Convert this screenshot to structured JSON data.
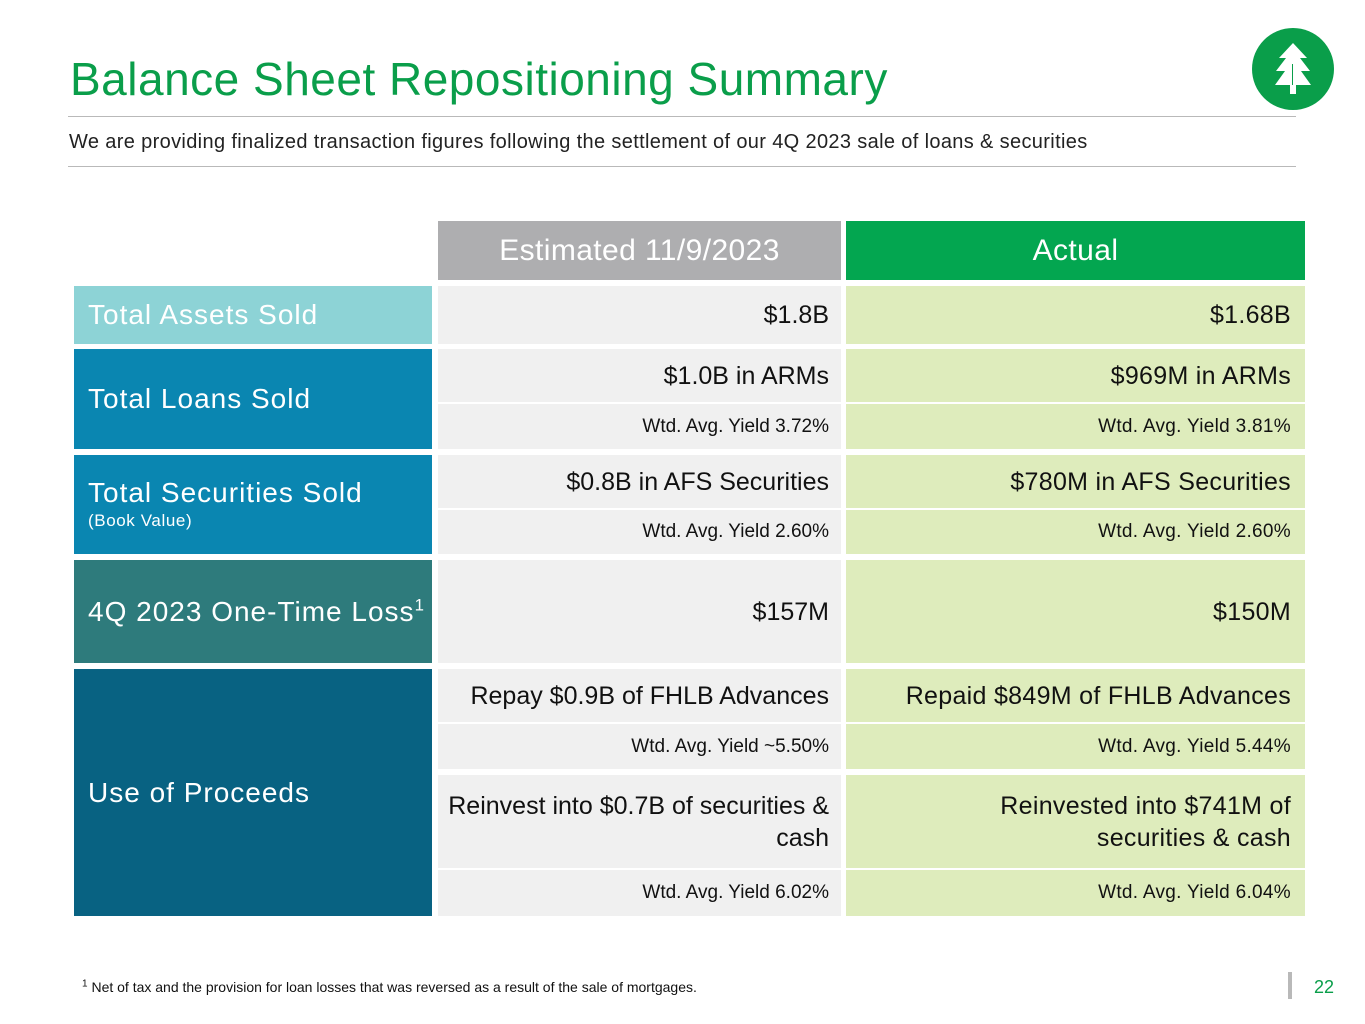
{
  "title": "Balance Sheet Repositioning Summary",
  "subtitle": "We are providing finalized transaction figures following the settlement of our 4Q 2023 sale of loans & securities",
  "columns": {
    "estimated": "Estimated 11/9/2023",
    "actual": "Actual"
  },
  "rows": {
    "assets": {
      "label": "Total Assets Sold",
      "estimated": "$1.8B",
      "actual": "$1.68B"
    },
    "loans": {
      "label": "Total Loans Sold",
      "estimated": "$1.0B in ARMs",
      "actual": "$969M in ARMs",
      "estimated_yield": "Wtd. Avg. Yield 3.72%",
      "actual_yield": "Wtd. Avg. Yield 3.81%"
    },
    "securities": {
      "label": "Total Securities Sold",
      "sublabel": "(Book Value)",
      "estimated": "$0.8B in AFS Securities",
      "actual": "$780M in AFS Securities",
      "estimated_yield": "Wtd. Avg. Yield 2.60%",
      "actual_yield": "Wtd. Avg. Yield 2.60%"
    },
    "loss": {
      "label": "4Q 2023 One-Time Loss",
      "footnote_mark": "1",
      "estimated": "$157M",
      "actual": "$150M"
    },
    "proceeds": {
      "label": "Use of Proceeds",
      "estimated_repay": "Repay $0.9B of FHLB Advances",
      "actual_repay": "Repaid $849M of FHLB Advances",
      "estimated_repay_yield": "Wtd. Avg. Yield ~5.50%",
      "actual_repay_yield": "Wtd. Avg. Yield 5.44%",
      "estimated_reinvest": "Reinvest into $0.7B of securities & cash",
      "actual_reinvest": "Reinvested into $741M of securities & cash",
      "estimated_reinvest_yield": "Wtd. Avg. Yield 6.02%",
      "actual_reinvest_yield": "Wtd. Avg. Yield 6.04%"
    }
  },
  "footnote": {
    "mark": "1",
    "text": "Net of tax and the provision for loan losses that was reversed as a result of the sale of mortgages."
  },
  "page_number": "22",
  "logo_icon": "tree-icon",
  "colors": {
    "brand_green": "#0a9e4a",
    "header_gray": "#aeaeb0",
    "header_green": "#03a650",
    "assets": "#8dd3d6",
    "loans": "#0a86b1",
    "loss": "#2e7b7c",
    "proceeds": "#086282",
    "estimated_bg": "#f0f0f0",
    "actual_bg": "#deecbc"
  }
}
